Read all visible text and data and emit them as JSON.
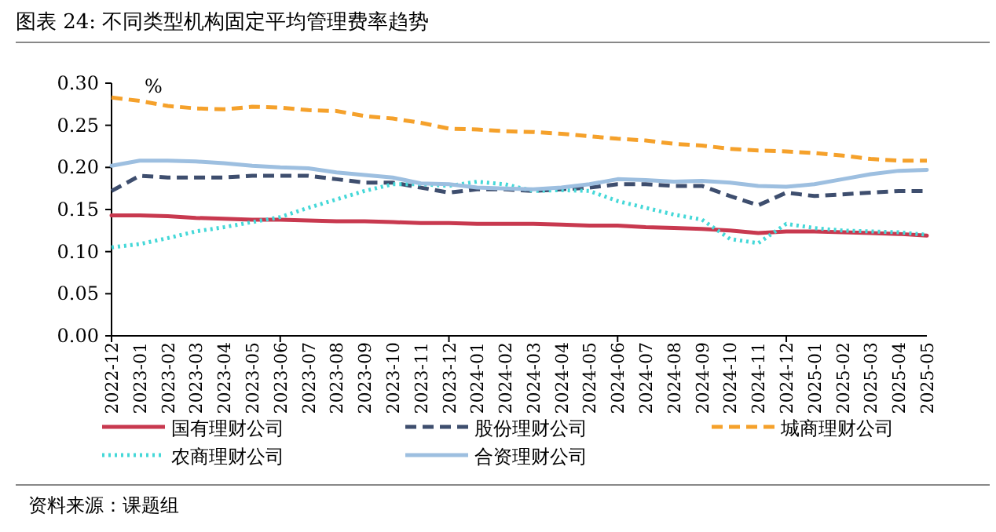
{
  "chart_data": {
    "type": "line",
    "title": "图表 24: 不同类型机构固定平均管理费率趋势",
    "annotations": [
      "%",
      "资料来源：课题组"
    ],
    "categories": [
      "2022-12",
      "2023-01",
      "2023-02",
      "2023-03",
      "2023-04",
      "2023-05",
      "2023-06",
      "2023-07",
      "2023-08",
      "2023-09",
      "2023-10",
      "2023-11",
      "2023-12",
      "2024-01",
      "2024-02",
      "2024-03",
      "2024-04",
      "2024-05",
      "2024-06",
      "2024-07",
      "2024-08",
      "2024-09",
      "2024-10",
      "2024-11",
      "2024-12",
      "2025-01",
      "2025-02",
      "2025-03",
      "2025-04",
      "2025-05"
    ],
    "ylim": [
      0,
      0.3
    ],
    "yticks": [
      {
        "value": 0,
        "label": "0.00"
      },
      {
        "value": 0.05,
        "label": "0.05"
      },
      {
        "value": 0.1,
        "label": "0.10"
      },
      {
        "value": 0.15,
        "label": "0.15"
      },
      {
        "value": 0.2,
        "label": "0.20"
      },
      {
        "value": 0.25,
        "label": "0.25"
      },
      {
        "value": 0.3,
        "label": "0.30"
      }
    ],
    "grid": false,
    "legend": "bottom",
    "marker": "none",
    "series": [
      {
        "name": "国有理财公司",
        "color": "#c8394f",
        "line_style": "solid",
        "values": [
          0.143,
          0.143,
          0.142,
          0.14,
          0.139,
          0.138,
          0.138,
          0.137,
          0.136,
          0.136,
          0.135,
          0.134,
          0.134,
          0.133,
          0.133,
          0.133,
          0.132,
          0.131,
          0.131,
          0.129,
          0.128,
          0.127,
          0.125,
          0.122,
          0.124,
          0.124,
          0.123,
          0.122,
          0.121,
          0.119
        ]
      },
      {
        "name": "股份理财公司",
        "color": "#3e4e6e",
        "line_style": "dashed",
        "values": [
          0.172,
          0.19,
          0.188,
          0.188,
          0.188,
          0.19,
          0.19,
          0.19,
          0.186,
          0.182,
          0.182,
          0.176,
          0.17,
          0.174,
          0.174,
          0.172,
          0.174,
          0.176,
          0.18,
          0.18,
          0.178,
          0.178,
          0.166,
          0.155,
          0.17,
          0.166,
          0.168,
          0.17,
          0.172,
          0.172
        ]
      },
      {
        "name": "城商理财公司",
        "color": "#f5a12b",
        "line_style": "dashed",
        "values": [
          0.283,
          0.279,
          0.273,
          0.27,
          0.269,
          0.272,
          0.271,
          0.268,
          0.267,
          0.261,
          0.258,
          0.253,
          0.246,
          0.245,
          0.243,
          0.242,
          0.24,
          0.237,
          0.234,
          0.232,
          0.228,
          0.226,
          0.222,
          0.22,
          0.219,
          0.217,
          0.214,
          0.21,
          0.208,
          0.208
        ]
      },
      {
        "name": "农商理财公司",
        "color": "#45d8d8",
        "line_style": "dotted",
        "values": [
          0.105,
          0.109,
          0.116,
          0.124,
          0.129,
          0.135,
          0.141,
          0.152,
          0.162,
          0.172,
          0.18,
          0.18,
          0.178,
          0.183,
          0.18,
          0.172,
          0.173,
          0.172,
          0.16,
          0.152,
          0.144,
          0.138,
          0.115,
          0.11,
          0.133,
          0.128,
          0.125,
          0.124,
          0.123,
          0.12
        ]
      },
      {
        "name": "合资理财公司",
        "color": "#9dbfe0",
        "line_style": "solid",
        "values": [
          0.202,
          0.208,
          0.208,
          0.207,
          0.205,
          0.202,
          0.2,
          0.199,
          0.194,
          0.191,
          0.188,
          0.181,
          0.18,
          0.176,
          0.175,
          0.174,
          0.176,
          0.18,
          0.186,
          0.185,
          0.183,
          0.184,
          0.182,
          0.178,
          0.177,
          0.18,
          0.186,
          0.192,
          0.196,
          0.197
        ]
      }
    ]
  }
}
